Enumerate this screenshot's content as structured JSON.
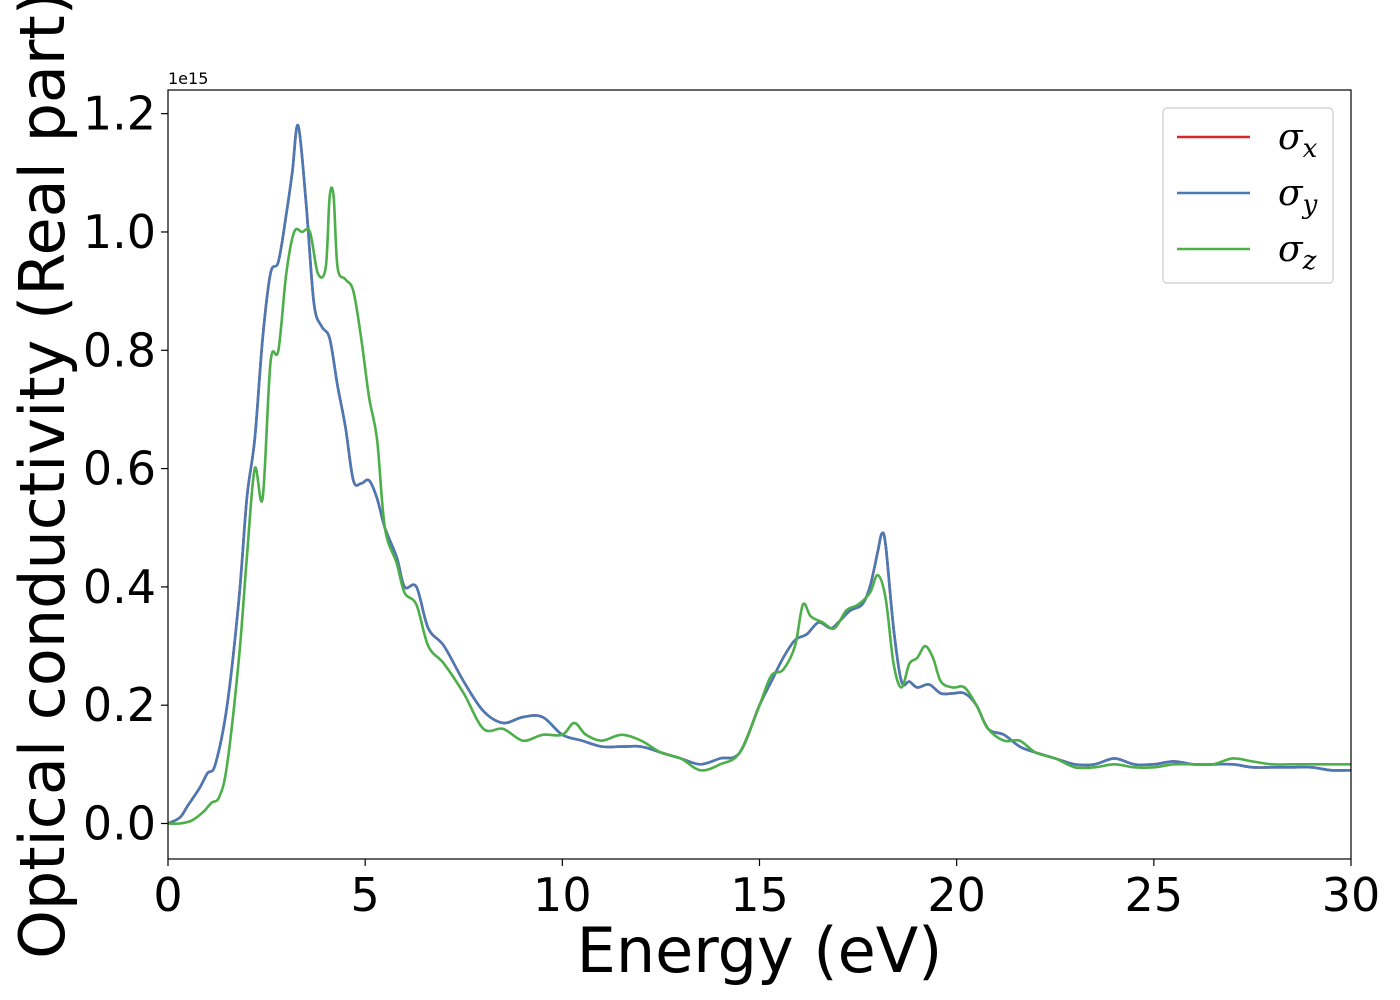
{
  "chart_data": {
    "type": "line",
    "title": "",
    "xlabel": "Energy (eV)",
    "ylabel": "Optical conductivity (Real part)",
    "y_offset_label": "1e15",
    "xlim": [
      0,
      30
    ],
    "ylim": [
      -0.06,
      1.24
    ],
    "xticks": [
      0,
      5,
      10,
      15,
      20,
      25,
      30
    ],
    "yticks": [
      0.0,
      0.2,
      0.4,
      0.6,
      0.8,
      1.0,
      1.2
    ],
    "xtick_labels": [
      "0",
      "5",
      "10",
      "15",
      "20",
      "25",
      "30"
    ],
    "ytick_labels": [
      "0.0",
      "0.2",
      "0.4",
      "0.6",
      "0.8",
      "1.0",
      "1.2"
    ],
    "grid": false,
    "legend_position": "top-right",
    "series": [
      {
        "name": "σx",
        "name_base": "σ",
        "name_sub": "x",
        "color": "#d62728",
        "x": [
          0,
          0.3,
          0.5,
          0.8,
          1.0,
          1.2,
          1.5,
          1.8,
          2.0,
          2.2,
          2.4,
          2.6,
          2.8,
          3.0,
          3.15,
          3.3,
          3.5,
          3.7,
          3.9,
          4.1,
          4.3,
          4.5,
          4.7,
          4.9,
          5.1,
          5.3,
          5.5,
          5.8,
          6.0,
          6.3,
          6.6,
          7.0,
          7.5,
          8.0,
          8.5,
          9.0,
          9.5,
          10.0,
          10.5,
          11.0,
          11.5,
          12.0,
          12.5,
          13.0,
          13.5,
          14.0,
          14.5,
          15.0,
          15.3,
          15.6,
          15.9,
          16.2,
          16.5,
          16.8,
          17.0,
          17.3,
          17.6,
          17.8,
          18.0,
          18.1,
          18.2,
          18.4,
          18.6,
          18.8,
          19.0,
          19.3,
          19.6,
          19.9,
          20.2,
          20.5,
          20.8,
          21.2,
          21.6,
          22.0,
          22.5,
          23.0,
          23.5,
          24.0,
          24.5,
          25.0,
          25.5,
          26.0,
          26.5,
          27.0,
          27.5,
          28.0,
          28.5,
          29.0,
          29.5,
          30.0
        ],
        "y": [
          0.0,
          0.01,
          0.03,
          0.06,
          0.085,
          0.1,
          0.2,
          0.38,
          0.55,
          0.65,
          0.82,
          0.93,
          0.95,
          1.03,
          1.1,
          1.18,
          1.05,
          0.88,
          0.84,
          0.82,
          0.74,
          0.67,
          0.58,
          0.575,
          0.58,
          0.55,
          0.5,
          0.45,
          0.4,
          0.4,
          0.33,
          0.3,
          0.24,
          0.19,
          0.17,
          0.18,
          0.18,
          0.15,
          0.14,
          0.13,
          0.13,
          0.13,
          0.12,
          0.11,
          0.1,
          0.11,
          0.12,
          0.2,
          0.24,
          0.28,
          0.31,
          0.32,
          0.34,
          0.33,
          0.34,
          0.36,
          0.37,
          0.4,
          0.46,
          0.49,
          0.47,
          0.33,
          0.24,
          0.24,
          0.23,
          0.235,
          0.22,
          0.22,
          0.22,
          0.2,
          0.16,
          0.15,
          0.13,
          0.12,
          0.11,
          0.1,
          0.1,
          0.11,
          0.1,
          0.1,
          0.105,
          0.1,
          0.1,
          0.1,
          0.095,
          0.095,
          0.095,
          0.095,
          0.09,
          0.09
        ]
      },
      {
        "name": "σy",
        "name_base": "σ",
        "name_sub": "y",
        "color": "#4a7ab5",
        "x": [
          0,
          0.3,
          0.5,
          0.8,
          1.0,
          1.2,
          1.5,
          1.8,
          2.0,
          2.2,
          2.4,
          2.6,
          2.8,
          3.0,
          3.15,
          3.3,
          3.5,
          3.7,
          3.9,
          4.1,
          4.3,
          4.5,
          4.7,
          4.9,
          5.1,
          5.3,
          5.5,
          5.8,
          6.0,
          6.3,
          6.6,
          7.0,
          7.5,
          8.0,
          8.5,
          9.0,
          9.5,
          10.0,
          10.5,
          11.0,
          11.5,
          12.0,
          12.5,
          13.0,
          13.5,
          14.0,
          14.5,
          15.0,
          15.3,
          15.6,
          15.9,
          16.2,
          16.5,
          16.8,
          17.0,
          17.3,
          17.6,
          17.8,
          18.0,
          18.1,
          18.2,
          18.4,
          18.6,
          18.8,
          19.0,
          19.3,
          19.6,
          19.9,
          20.2,
          20.5,
          20.8,
          21.2,
          21.6,
          22.0,
          22.5,
          23.0,
          23.5,
          24.0,
          24.5,
          25.0,
          25.5,
          26.0,
          26.5,
          27.0,
          27.5,
          28.0,
          28.5,
          29.0,
          29.5,
          30.0
        ],
        "y": [
          0.0,
          0.01,
          0.03,
          0.06,
          0.085,
          0.1,
          0.2,
          0.38,
          0.55,
          0.65,
          0.82,
          0.93,
          0.95,
          1.03,
          1.1,
          1.18,
          1.05,
          0.88,
          0.84,
          0.82,
          0.74,
          0.67,
          0.58,
          0.575,
          0.58,
          0.55,
          0.5,
          0.45,
          0.4,
          0.4,
          0.33,
          0.3,
          0.24,
          0.19,
          0.17,
          0.18,
          0.18,
          0.15,
          0.14,
          0.13,
          0.13,
          0.13,
          0.12,
          0.11,
          0.1,
          0.11,
          0.12,
          0.2,
          0.24,
          0.28,
          0.31,
          0.32,
          0.34,
          0.33,
          0.34,
          0.36,
          0.37,
          0.4,
          0.46,
          0.49,
          0.47,
          0.33,
          0.24,
          0.24,
          0.23,
          0.235,
          0.22,
          0.22,
          0.22,
          0.2,
          0.16,
          0.15,
          0.13,
          0.12,
          0.11,
          0.1,
          0.1,
          0.11,
          0.1,
          0.1,
          0.105,
          0.1,
          0.1,
          0.1,
          0.095,
          0.095,
          0.095,
          0.095,
          0.09,
          0.09
        ]
      },
      {
        "name": "σz",
        "name_base": "σ",
        "name_sub": "z",
        "color": "#4daf4a",
        "x": [
          0,
          0.3,
          0.6,
          0.9,
          1.1,
          1.3,
          1.5,
          1.8,
          2.0,
          2.2,
          2.4,
          2.6,
          2.8,
          3.0,
          3.2,
          3.4,
          3.6,
          3.8,
          4.0,
          4.1,
          4.2,
          4.3,
          4.5,
          4.7,
          4.9,
          5.1,
          5.3,
          5.5,
          5.8,
          6.0,
          6.3,
          6.6,
          7.0,
          7.5,
          8.0,
          8.5,
          9.0,
          9.5,
          10.0,
          10.3,
          10.6,
          11.0,
          11.5,
          12.0,
          12.5,
          13.0,
          13.5,
          14.0,
          14.5,
          15.0,
          15.3,
          15.6,
          15.9,
          16.1,
          16.3,
          16.6,
          16.9,
          17.2,
          17.5,
          17.8,
          18.0,
          18.2,
          18.4,
          18.6,
          18.8,
          19.0,
          19.2,
          19.4,
          19.6,
          19.9,
          20.2,
          20.5,
          20.8,
          21.2,
          21.6,
          22.0,
          22.5,
          23.0,
          23.5,
          24.0,
          24.5,
          25.0,
          25.5,
          26.0,
          26.5,
          27.0,
          27.5,
          28.0,
          28.5,
          29.0,
          29.5,
          30.0
        ],
        "y": [
          0.0,
          0.0,
          0.005,
          0.02,
          0.035,
          0.045,
          0.1,
          0.28,
          0.45,
          0.6,
          0.55,
          0.78,
          0.8,
          0.93,
          1.0,
          1.0,
          1.0,
          0.93,
          0.94,
          1.06,
          1.06,
          0.94,
          0.92,
          0.9,
          0.82,
          0.72,
          0.65,
          0.5,
          0.44,
          0.39,
          0.37,
          0.3,
          0.27,
          0.22,
          0.16,
          0.16,
          0.14,
          0.15,
          0.15,
          0.17,
          0.15,
          0.14,
          0.15,
          0.14,
          0.12,
          0.11,
          0.09,
          0.1,
          0.12,
          0.2,
          0.25,
          0.26,
          0.3,
          0.37,
          0.35,
          0.34,
          0.33,
          0.36,
          0.37,
          0.39,
          0.42,
          0.38,
          0.27,
          0.23,
          0.27,
          0.28,
          0.3,
          0.28,
          0.24,
          0.23,
          0.23,
          0.2,
          0.16,
          0.14,
          0.14,
          0.12,
          0.11,
          0.095,
          0.095,
          0.1,
          0.095,
          0.095,
          0.1,
          0.1,
          0.1,
          0.11,
          0.105,
          0.1,
          0.1,
          0.1,
          0.1,
          0.1
        ]
      }
    ]
  }
}
